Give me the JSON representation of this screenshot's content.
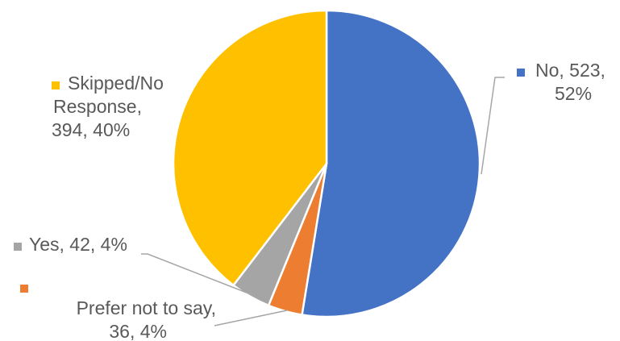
{
  "chart_data": {
    "type": "pie",
    "start_angle_deg": 0,
    "direction": "clockwise",
    "slice_border_color": "#ffffff",
    "leader_line_color": "#a6a6a6",
    "label_color": "#595959",
    "slices": [
      {
        "name": "No",
        "value": 523,
        "percent": "52%",
        "color": "#4472c4",
        "label_lines": [
          "No, 523,",
          "52%"
        ]
      },
      {
        "name": "Prefer not to say",
        "value": 36,
        "percent": "4%",
        "color": "#ed7d31",
        "label_lines": [
          "Prefer not to say,",
          "36, 4%"
        ]
      },
      {
        "name": "Yes",
        "value": 42,
        "percent": "4%",
        "color": "#a5a5a5",
        "label_lines": [
          "Yes, 42, 4%"
        ]
      },
      {
        "name": "Skipped/No Response",
        "value": 394,
        "percent": "40%",
        "color": "#ffc000",
        "label_lines": [
          "Skipped/No",
          "Response,",
          "394, 40%"
        ]
      }
    ]
  }
}
